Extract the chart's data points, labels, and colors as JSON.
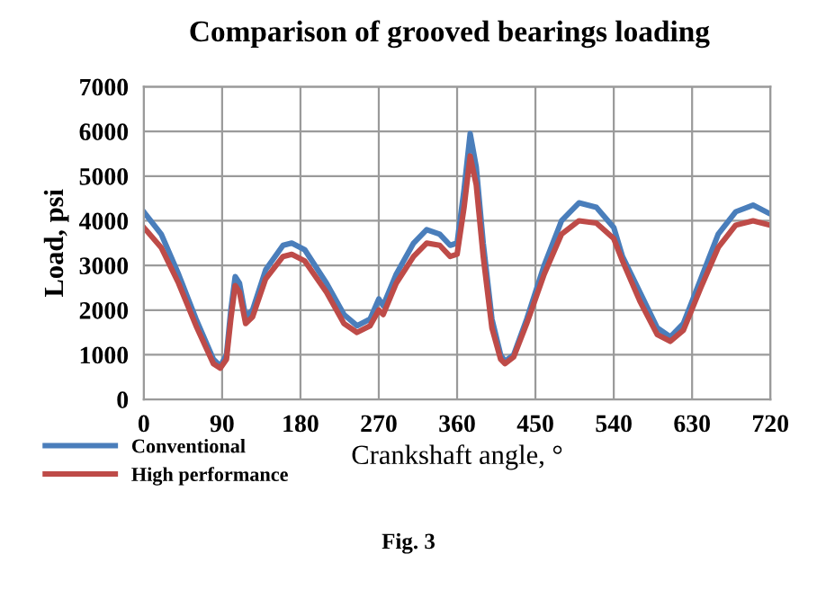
{
  "chart_data": {
    "type": "line",
    "title": "Comparison of grooved bearings loading",
    "xlabel": "Crankshaft angle, °",
    "ylabel": "Load, psi",
    "annotations": [
      "Fig. 3"
    ],
    "xlim": [
      0,
      720
    ],
    "xticks": [
      0,
      90,
      180,
      270,
      360,
      450,
      540,
      630,
      720
    ],
    "ylim": [
      0,
      7000
    ],
    "yticks": [
      0,
      1000,
      2000,
      3000,
      4000,
      5000,
      6000,
      7000
    ],
    "grid": true,
    "legend": "bottom left",
    "marker": "none",
    "line_style": "solid",
    "series": [
      {
        "name": "Conventional",
        "color": "#4a7ebb",
        "x": [
          0,
          20,
          40,
          60,
          80,
          88,
          95,
          100,
          105,
          110,
          117,
          125,
          140,
          160,
          170,
          185,
          210,
          230,
          245,
          260,
          270,
          275,
          290,
          310,
          325,
          340,
          352,
          360,
          368,
          375,
          382,
          390,
          400,
          410,
          415,
          425,
          440,
          460,
          480,
          500,
          520,
          540,
          550,
          570,
          590,
          605,
          620,
          640,
          660,
          680,
          700,
          720
        ],
        "values": [
          4200,
          3700,
          2800,
          1800,
          900,
          750,
          1000,
          2000,
          2750,
          2600,
          1850,
          2000,
          2900,
          3450,
          3500,
          3350,
          2600,
          1900,
          1650,
          1800,
          2250,
          2100,
          2800,
          3500,
          3800,
          3700,
          3450,
          3500,
          4700,
          5950,
          5200,
          3500,
          1800,
          1000,
          850,
          1000,
          1800,
          3000,
          4000,
          4400,
          4300,
          3850,
          3200,
          2400,
          1600,
          1400,
          1700,
          2700,
          3700,
          4200,
          4350,
          4150
        ]
      },
      {
        "name": "High performance",
        "color": "#be4b48",
        "x": [
          0,
          20,
          40,
          60,
          80,
          88,
          95,
          100,
          105,
          110,
          117,
          125,
          140,
          160,
          170,
          185,
          210,
          230,
          245,
          260,
          270,
          275,
          290,
          310,
          325,
          340,
          352,
          360,
          368,
          375,
          382,
          390,
          400,
          410,
          415,
          425,
          440,
          460,
          480,
          500,
          520,
          540,
          550,
          570,
          590,
          605,
          620,
          640,
          660,
          680,
          700,
          720
        ],
        "values": [
          3850,
          3400,
          2600,
          1650,
          800,
          700,
          900,
          1800,
          2550,
          2400,
          1700,
          1850,
          2700,
          3200,
          3250,
          3100,
          2400,
          1700,
          1500,
          1650,
          2000,
          1900,
          2600,
          3200,
          3500,
          3450,
          3200,
          3250,
          4300,
          5450,
          4800,
          3200,
          1600,
          900,
          800,
          950,
          1700,
          2800,
          3700,
          4000,
          3950,
          3600,
          3100,
          2200,
          1450,
          1300,
          1550,
          2500,
          3400,
          3900,
          4000,
          3900
        ]
      }
    ]
  }
}
